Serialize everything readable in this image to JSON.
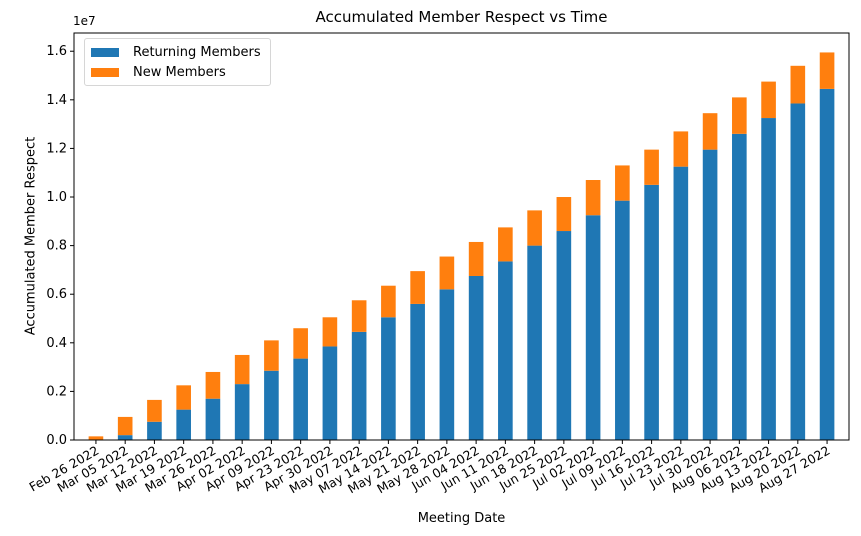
{
  "chart_data": {
    "type": "bar",
    "stacked": true,
    "title": "Accumulated Member Respect vs Time",
    "xlabel": "Meeting Date",
    "ylabel": "Accumulated Member Respect",
    "y_multiplier_label": "1e7",
    "ylim": [
      0,
      16750000
    ],
    "yticks": [
      0,
      2000000,
      4000000,
      6000000,
      8000000,
      10000000,
      12000000,
      14000000,
      16000000
    ],
    "ytick_labels": [
      "0.0",
      "0.2",
      "0.4",
      "0.6",
      "0.8",
      "1.0",
      "1.2",
      "1.4",
      "1.6"
    ],
    "grid": false,
    "legend_position": "top-left",
    "categories": [
      "Feb 26 2022",
      "Mar 05 2022",
      "Mar 12 2022",
      "Mar 19 2022",
      "Mar 26 2022",
      "Apr 02 2022",
      "Apr 09 2022",
      "Apr 23 2022",
      "Apr 30 2022",
      "May 07 2022",
      "May 14 2022",
      "May 21 2022",
      "May 28 2022",
      "Jun 04 2022",
      "Jun 11 2022",
      "Jun 18 2022",
      "Jun 25 2022",
      "Jul 02 2022",
      "Jul 09 2022",
      "Jul 16 2022",
      "Jul 23 2022",
      "Jul 30 2022",
      "Aug 06 2022",
      "Aug 13 2022",
      "Aug 20 2022",
      "Aug 27 2022"
    ],
    "series": [
      {
        "name": "Returning Members",
        "color": "#1f77b4",
        "values": [
          0,
          200000,
          750000,
          1250000,
          1700000,
          2300000,
          2850000,
          3350000,
          3850000,
          4450000,
          5050000,
          5600000,
          6200000,
          6750000,
          7350000,
          8000000,
          8600000,
          9250000,
          9850000,
          10500000,
          11250000,
          11950000,
          12600000,
          13250000,
          13850000,
          14450000
        ]
      },
      {
        "name": "New Members",
        "color": "#ff7f0e",
        "values": [
          150000,
          750000,
          900000,
          1000000,
          1100000,
          1200000,
          1250000,
          1250000,
          1200000,
          1300000,
          1300000,
          1350000,
          1350000,
          1400000,
          1400000,
          1450000,
          1400000,
          1450000,
          1450000,
          1450000,
          1450000,
          1500000,
          1500000,
          1500000,
          1550000,
          1500000
        ]
      }
    ]
  }
}
